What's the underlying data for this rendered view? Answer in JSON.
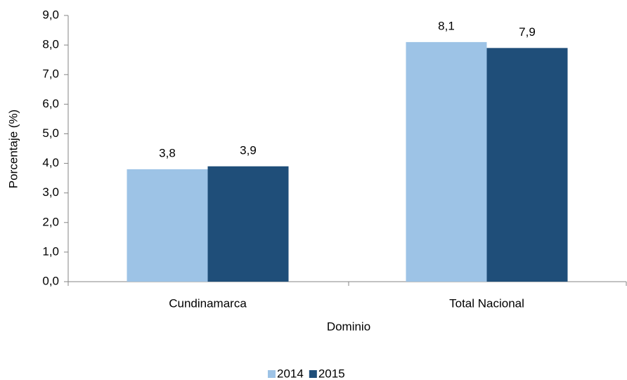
{
  "chart_data": {
    "type": "bar",
    "x_label": "Dominio",
    "y_label": "Porcentaje (%)",
    "categories": [
      "Cundinamarca",
      "Total Nacional"
    ],
    "series": [
      {
        "name": "2014",
        "color": "#9dc3e6",
        "values": [
          3.8,
          8.1
        ],
        "value_labels": [
          "3,8",
          "8,1"
        ]
      },
      {
        "name": "2015",
        "color": "#1f4e79",
        "values": [
          3.9,
          7.9
        ],
        "value_labels": [
          "3,9",
          "7,9"
        ]
      }
    ],
    "ylim": [
      0,
      9
    ],
    "yticks": [
      {
        "value": 0,
        "label": "0,0"
      },
      {
        "value": 1,
        "label": "1,0"
      },
      {
        "value": 2,
        "label": "2,0"
      },
      {
        "value": 3,
        "label": "3,0"
      },
      {
        "value": 4,
        "label": "4,0"
      },
      {
        "value": 5,
        "label": "5,0"
      },
      {
        "value": 6,
        "label": "6,0"
      },
      {
        "value": 7,
        "label": "7,0"
      },
      {
        "value": 8,
        "label": "8,0"
      },
      {
        "value": 9,
        "label": "9,0"
      }
    ],
    "grid": false,
    "legend": "bottom"
  }
}
